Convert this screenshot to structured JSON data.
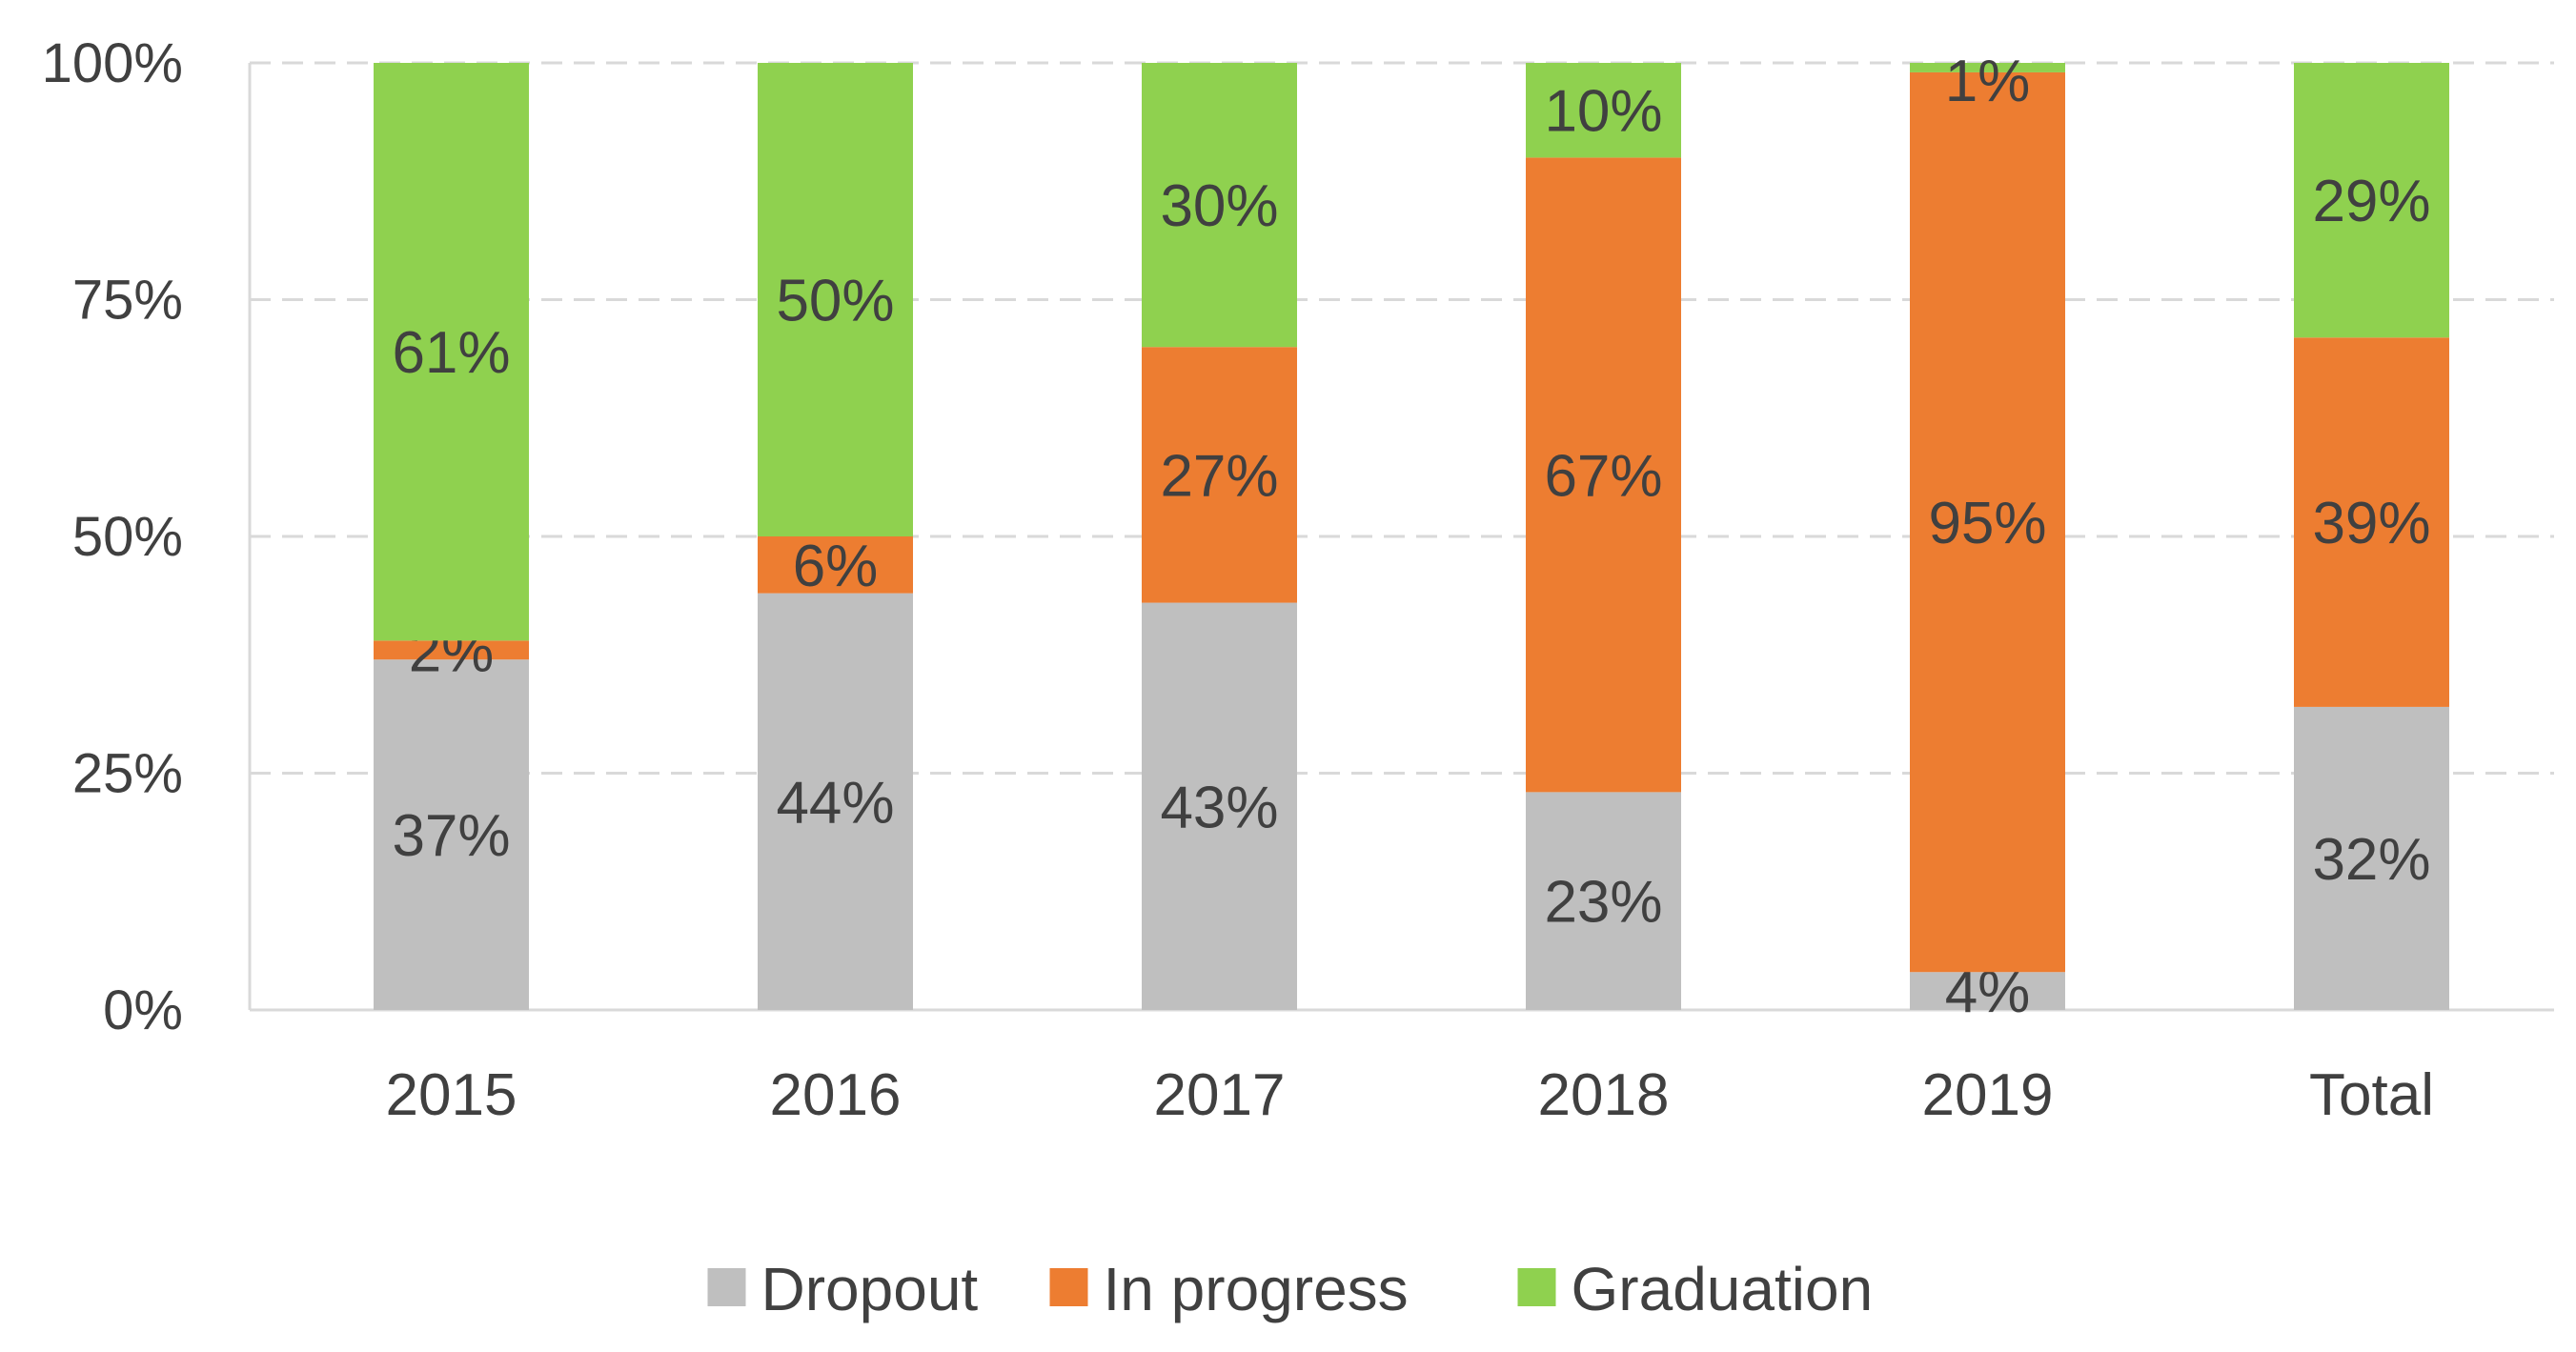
{
  "chart_data": {
    "type": "bar",
    "stacked": true,
    "categories": [
      "2015",
      "2016",
      "2017",
      "2018",
      "2019",
      "Total"
    ],
    "series": [
      {
        "name": "Dropout",
        "color": "#bfbfbf",
        "values": [
          37,
          44,
          43,
          23,
          4,
          32
        ],
        "labels": [
          "37%",
          "44%",
          "43%",
          "23%",
          "4%",
          "32%"
        ]
      },
      {
        "name": "In progress",
        "color": "#ed7d31",
        "values": [
          2,
          6,
          27,
          67,
          95,
          39
        ],
        "labels": [
          "2%",
          "6%",
          "27%",
          "67%",
          "95%",
          "39%"
        ]
      },
      {
        "name": "Graduation",
        "color": "#8fd14f",
        "values": [
          61,
          50,
          30,
          10,
          1,
          29
        ],
        "labels": [
          "61%",
          "50%",
          "30%",
          "10%",
          "1%",
          "29%"
        ]
      }
    ],
    "ylim": [
      0,
      100
    ],
    "yticks": [
      0,
      25,
      50,
      75,
      100
    ],
    "ytick_labels": [
      "0%",
      "25%",
      "50%",
      "75%",
      "100%"
    ],
    "grid": true,
    "gridline_style": "dashed",
    "legend_position": "bottom-center",
    "title": "",
    "xlabel": "",
    "ylabel": ""
  }
}
